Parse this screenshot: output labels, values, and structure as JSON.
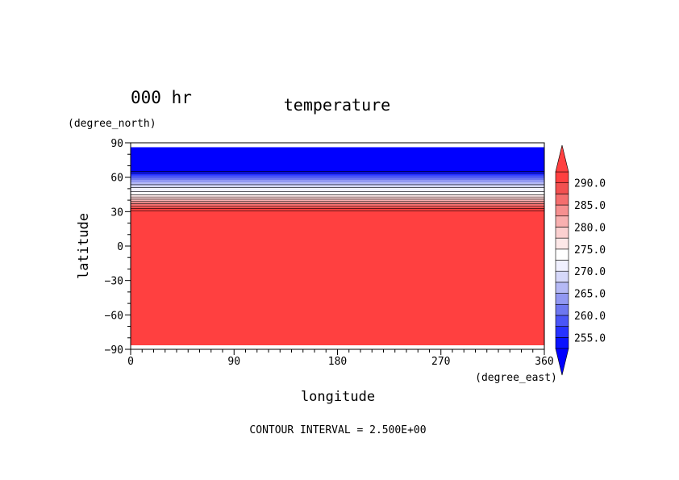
{
  "chart_data": {
    "type": "heatmap",
    "title": "temperature",
    "time_label": "000 hr",
    "xlabel": "longitude",
    "ylabel": "latitude",
    "xunit": "(degree_east)",
    "yunit": "(degree_north)",
    "xlim": [
      0,
      360
    ],
    "ylim": [
      -90,
      90
    ],
    "xticks": [
      "0",
      "90",
      "180",
      "270",
      "360"
    ],
    "yticks": [
      "90",
      "60",
      "30",
      "0",
      "−30",
      "−60",
      "−90"
    ],
    "x_tick_values": [
      0,
      90,
      180,
      270,
      360
    ],
    "y_tick_values": [
      90,
      60,
      30,
      0,
      -30,
      -60,
      -90
    ],
    "data_lat_range": [
      -86,
      86
    ],
    "contour_interval": "CONTOUR INTERVAL = 2.500E+00",
    "colorbar": {
      "labels": [
        "290.0",
        "285.0",
        "280.0",
        "275.0",
        "270.0",
        "265.0",
        "260.0",
        "255.0"
      ],
      "label_values": [
        290,
        285,
        280,
        275,
        270,
        265,
        260,
        255
      ],
      "levels": [
        252.5,
        255,
        257.5,
        260,
        262.5,
        265,
        267.5,
        270,
        272.5,
        275,
        277.5,
        280,
        282.5,
        285,
        287.5,
        290,
        292.5
      ],
      "colors": [
        "#0000ff",
        "#0a12ff",
        "#2632ff",
        "#4a55f7",
        "#6e77f0",
        "#9298f2",
        "#b5b9f5",
        "#d6d8fa",
        "#f0f0ff",
        "#ffffff",
        "#fde8e8",
        "#fbd0d0",
        "#f8b0b0",
        "#f69090",
        "#f46e6e",
        "#f25050",
        "#ff4040"
      ]
    },
    "temperature_profile": {
      "lat": [
        -90,
        30,
        32,
        34,
        36,
        38,
        40,
        42,
        44,
        46,
        48,
        50,
        52,
        54,
        56,
        58,
        60,
        62,
        66,
        90
      ],
      "value": [
        293.5,
        293.5,
        291,
        288.5,
        286,
        283.5,
        281,
        278.5,
        276,
        273.5,
        272,
        271,
        269,
        267,
        265,
        262.5,
        260,
        257.5,
        251,
        251
      ]
    }
  }
}
